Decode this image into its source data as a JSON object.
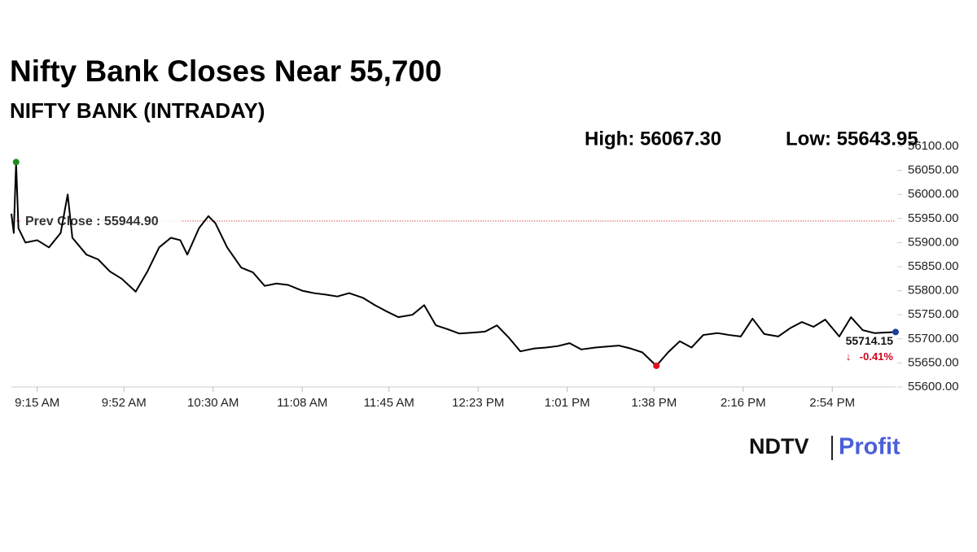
{
  "chart_data": {
    "type": "line",
    "title": "Nifty Bank Closes Near 55,700",
    "subtitle": "NIFTY BANK (INTRADAY)",
    "high_label": "High: 56067.30",
    "low_label": "Low: 55643.95",
    "prev_close": 55944.9,
    "prev_close_label": "Prev Close : 55944.90",
    "prev_close_color": "#d9534f",
    "change": {
      "value": -0.41,
      "label": "-0.41%"
    },
    "change_color": "#d0021b",
    "marker_colors": {
      "high": "#1e8c1e",
      "low": "#e0101a",
      "last": "#1f3f9f"
    },
    "brand": [
      "NDTV",
      "Profit"
    ],
    "x": [
      "9:04 AM",
      "9:05 AM",
      "9:06 AM",
      "9:07 AM",
      "9:10 AM",
      "9:15 AM",
      "9:20 AM",
      "9:25 AM",
      "9:28 AM",
      "9:30 AM",
      "9:36 AM",
      "9:41 AM",
      "9:46 AM",
      "9:51 AM",
      "9:57 AM",
      "10:02 AM",
      "10:07 AM",
      "10:12 AM",
      "10:16 AM",
      "10:19 AM",
      "10:24 AM",
      "10:28 AM",
      "10:31 AM",
      "10:36 AM",
      "10:42 AM",
      "10:47 AM",
      "10:52 AM",
      "10:57 AM",
      "11:02 AM",
      "11:08 AM",
      "11:13 AM",
      "11:18 AM",
      "11:23 AM",
      "11:28 AM",
      "11:34 AM",
      "11:39 AM",
      "11:44 AM",
      "11:49 AM",
      "11:55 AM",
      "12:00 PM",
      "12:05 PM",
      "12:10 PM",
      "12:15 PM",
      "12:21 PM",
      "12:26 PM",
      "12:31 PM",
      "12:36 PM",
      "12:41 PM",
      "12:47 PM",
      "12:52 PM",
      "12:57 PM",
      "1:02 PM",
      "1:07 PM",
      "1:13 PM",
      "1:18 PM",
      "1:23 PM",
      "1:28 PM",
      "1:33 PM",
      "1:39 PM",
      "1:44 PM",
      "1:49 PM",
      "1:54 PM",
      "1:59 PM",
      "2:05 PM",
      "2:10 PM",
      "2:15 PM",
      "2:20 PM",
      "2:25 PM",
      "2:31 PM",
      "2:36 PM",
      "2:41 PM",
      "2:46 PM",
      "2:51 PM",
      "2:57 PM",
      "3:02 PM",
      "3:07 PM",
      "3:12 PM",
      "3:21 PM"
    ],
    "series": [
      {
        "name": "NIFTY BANK",
        "color": "#000000",
        "values": [
          55960,
          55920,
          56067.3,
          55930,
          55900,
          55905,
          55890,
          55920,
          56000,
          55910,
          55875,
          55865,
          55840,
          55825,
          55798,
          55840,
          55890,
          55910,
          55905,
          55875,
          55930,
          55955,
          55940,
          55890,
          55848,
          55838,
          55810,
          55815,
          55812,
          55800,
          55795,
          55792,
          55788,
          55795,
          55785,
          55770,
          55757,
          55745,
          55750,
          55770,
          55728,
          55720,
          55711,
          55713,
          55715,
          55728,
          55703,
          55674,
          55680,
          55682,
          55685,
          55691,
          55678,
          55682,
          55684,
          55686,
          55680,
          55672,
          55643.95,
          55672,
          55695,
          55682,
          55708,
          55712,
          55708,
          55705,
          55742,
          55710,
          55705,
          55722,
          55735,
          55725,
          55740,
          55705,
          55745,
          55718,
          55712,
          55714.15
        ]
      }
    ],
    "xlim": [
      "9:04 AM",
      "3:21 PM"
    ],
    "xticks": [
      "9:15 AM",
      "9:52 AM",
      "10:30 AM",
      "11:08 AM",
      "11:45 AM",
      "12:23 PM",
      "1:01 PM",
      "1:38 PM",
      "2:16 PM",
      "2:54 PM"
    ],
    "ylim": [
      55600,
      56100
    ],
    "yticks": [
      {
        "value": 55600,
        "label": "55600.00"
      },
      {
        "value": 55650,
        "label": "55650.00"
      },
      {
        "value": 55700,
        "label": "55700.00"
      },
      {
        "value": 55750,
        "label": "55750.00"
      },
      {
        "value": 55800,
        "label": "55800.00"
      },
      {
        "value": 55850,
        "label": "55850.00"
      },
      {
        "value": 55900,
        "label": "55900.00"
      },
      {
        "value": 55950,
        "label": "55950.00"
      },
      {
        "value": 56000,
        "label": "56000.00"
      },
      {
        "value": 56050,
        "label": "56050.00"
      },
      {
        "value": 56100,
        "label": "56100.00"
      }
    ],
    "grid": false
  }
}
